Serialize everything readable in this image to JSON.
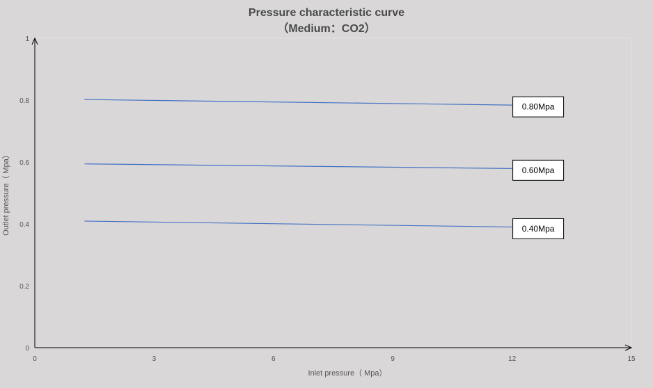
{
  "chart_data": {
    "type": "line",
    "title": "Pressure characteristic curve",
    "subtitle": "（Medium：CO2）",
    "xlabel": "Inlet pressure（ Mpa）",
    "ylabel": "Outlet pressure（ Mpa）",
    "xlim": [
      0,
      15
    ],
    "ylim": [
      0,
      1
    ],
    "x_ticks": [
      "0",
      "3",
      "6",
      "9",
      "12",
      "15"
    ],
    "y_ticks": [
      "0",
      "0.2",
      "0.4",
      "0.6",
      "0.8",
      "1"
    ],
    "grid": false,
    "legend": "none",
    "series": [
      {
        "label": "0.80Mpa",
        "x": [
          1.25,
          12
        ],
        "y": [
          0.802,
          0.784
        ],
        "color": "#4472c4"
      },
      {
        "label": "0.60Mpa",
        "x": [
          1.25,
          12
        ],
        "y": [
          0.594,
          0.579
        ],
        "color": "#4472c4"
      },
      {
        "label": "0.40Mpa",
        "x": [
          1.25,
          12
        ],
        "y": [
          0.409,
          0.39
        ],
        "color": "#4472c4"
      }
    ]
  }
}
